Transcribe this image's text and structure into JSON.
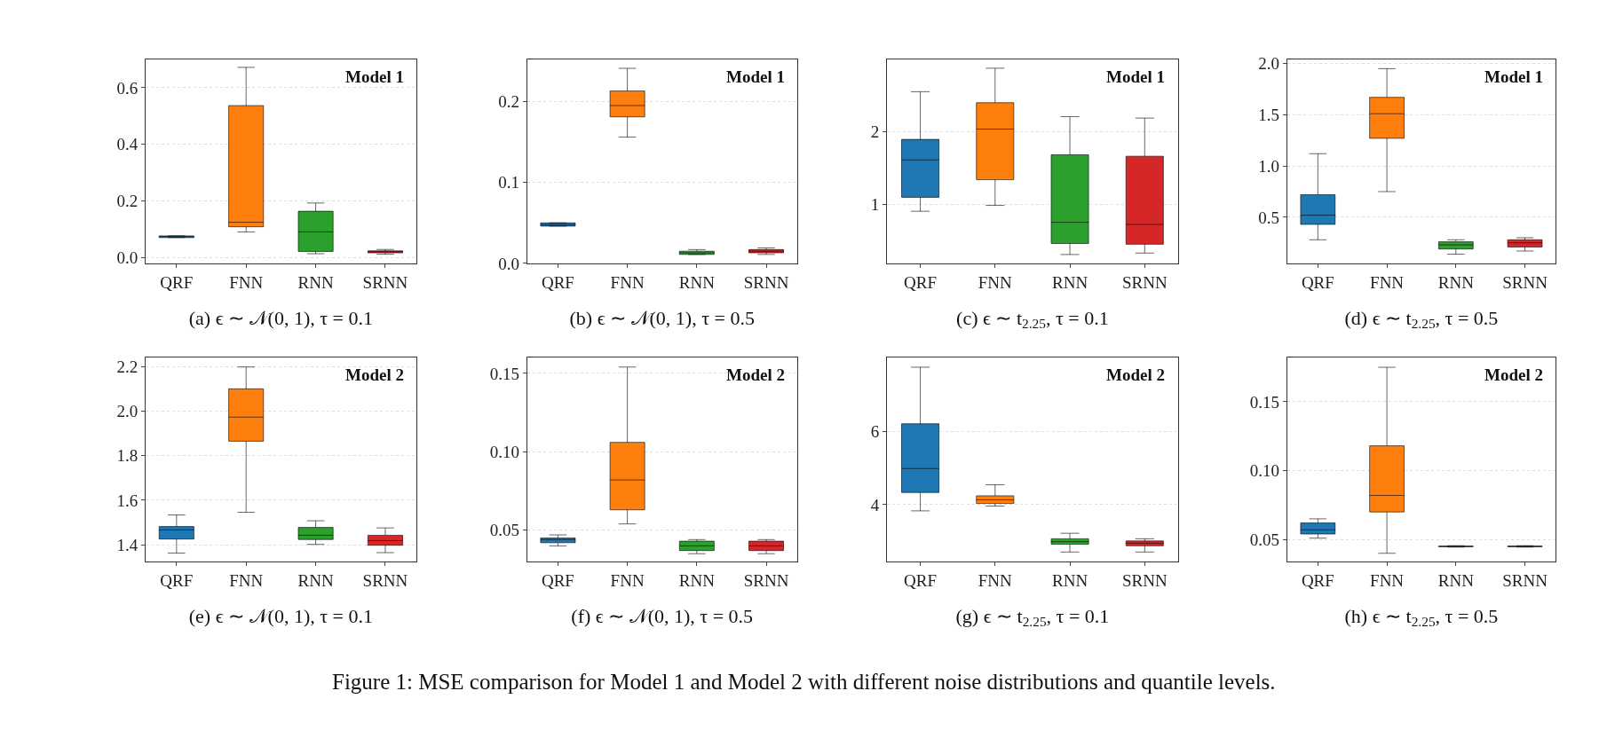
{
  "chart_data": [
    {
      "type": "box",
      "xlabel": "(a) ϵ ∼ 𝒩(0, 1), τ = 0.1",
      "annotations": [
        "Model 1"
      ],
      "categories": [
        "QRF",
        "FNN",
        "RNN",
        "SRNN"
      ],
      "colors": [
        "#1f77b4",
        "#ff7f0e",
        "#2ca02c",
        "#d62728"
      ],
      "grid": "y",
      "ylim": [
        -0.02,
        0.7
      ],
      "yticks": [
        {
          "value": 0,
          "label": "0.0"
        },
        0.2,
        0.4,
        0.6
      ],
      "boxes": [
        {
          "low": 0.071,
          "q1": 0.071,
          "median": 0.074,
          "q3": 0.077,
          "high": 0.077
        },
        {
          "low": 0.091,
          "q1": 0.109,
          "median": 0.125,
          "q3": 0.537,
          "high": 0.672
        },
        {
          "low": 0.014,
          "q1": 0.022,
          "median": 0.091,
          "q3": 0.164,
          "high": 0.193
        },
        {
          "low": 0.012,
          "q1": 0.017,
          "median": 0.022,
          "q3": 0.024,
          "high": 0.029
        }
      ]
    },
    {
      "type": "box",
      "xlabel": "(b) ϵ ∼ 𝒩(0, 1), τ = 0.5",
      "annotations": [
        "Model 1"
      ],
      "categories": [
        "QRF",
        "FNN",
        "RNN",
        "SRNN"
      ],
      "colors": [
        "#1f77b4",
        "#ff7f0e",
        "#2ca02c",
        "#d62728"
      ],
      "grid": "y",
      "ylim": [
        0,
        0.252
      ],
      "yticks": [
        {
          "value": 0,
          "label": "0.0"
        },
        0.1,
        0.2
      ],
      "boxes": [
        {
          "low": 0.046,
          "q1": 0.046,
          "median": 0.048,
          "q3": 0.05,
          "high": 0.05
        },
        {
          "low": 0.156,
          "q1": 0.181,
          "median": 0.195,
          "q3": 0.213,
          "high": 0.241
        },
        {
          "low": 0.011,
          "q1": 0.011,
          "median": 0.013,
          "q3": 0.015,
          "high": 0.017
        },
        {
          "low": 0.011,
          "q1": 0.013,
          "median": 0.015,
          "q3": 0.017,
          "high": 0.019
        }
      ]
    },
    {
      "type": "box",
      "xlabel": "(c) ϵ ∼ t$_{2.25}$, τ = 0.1",
      "annotations": [
        "Model 1"
      ],
      "categories": [
        "QRF",
        "FNN",
        "RNN",
        "SRNN"
      ],
      "colors": [
        "#1f77b4",
        "#ff7f0e",
        "#2ca02c",
        "#d62728"
      ],
      "grid": "y",
      "ylim": [
        0.2,
        2.98
      ],
      "yticks": [
        1,
        2
      ],
      "boxes": [
        {
          "low": 0.91,
          "q1": 1.1,
          "median": 1.61,
          "q3": 1.89,
          "high": 2.54
        },
        {
          "low": 0.99,
          "q1": 1.34,
          "median": 2.03,
          "q3": 2.39,
          "high": 2.86
        },
        {
          "low": 0.32,
          "q1": 0.47,
          "median": 0.76,
          "q3": 1.68,
          "high": 2.2
        },
        {
          "low": 0.34,
          "q1": 0.46,
          "median": 0.73,
          "q3": 1.66,
          "high": 2.18
        }
      ]
    },
    {
      "type": "box",
      "xlabel": "(d) ϵ ∼ t$_{2.25}$, τ = 0.5",
      "annotations": [
        "Model 1"
      ],
      "categories": [
        "QRF",
        "FNN",
        "RNN",
        "SRNN"
      ],
      "colors": [
        "#1f77b4",
        "#ff7f0e",
        "#2ca02c",
        "#d62728"
      ],
      "grid": "y",
      "ylim": [
        0.05,
        2.04
      ],
      "yticks": [
        0.5,
        {
          "value": 1,
          "label": "1.0"
        },
        1.5,
        {
          "value": 2,
          "label": "2.0"
        }
      ],
      "boxes": [
        {
          "low": 0.28,
          "q1": 0.43,
          "median": 0.52,
          "q3": 0.72,
          "high": 1.12
        },
        {
          "low": 0.75,
          "q1": 1.27,
          "median": 1.51,
          "q3": 1.67,
          "high": 1.95
        },
        {
          "low": 0.14,
          "q1": 0.19,
          "median": 0.23,
          "q3": 0.26,
          "high": 0.28
        },
        {
          "low": 0.17,
          "q1": 0.21,
          "median": 0.25,
          "q3": 0.28,
          "high": 0.3
        }
      ]
    },
    {
      "type": "box",
      "xlabel": "(e) ϵ ∼ 𝒩(0, 1), τ = 0.1",
      "annotations": [
        "Model 2"
      ],
      "categories": [
        "QRF",
        "FNN",
        "RNN",
        "SRNN"
      ],
      "colors": [
        "#1f77b4",
        "#ff7f0e",
        "#2ca02c",
        "#d62728"
      ],
      "grid": "y",
      "ylim": [
        1.325,
        2.24
      ],
      "yticks": [
        1.4,
        1.6,
        1.8,
        {
          "value": 2,
          "label": "2.0"
        },
        2.2
      ],
      "boxes": [
        {
          "low": 1.363,
          "q1": 1.426,
          "median": 1.467,
          "q3": 1.482,
          "high": 1.534
        },
        {
          "low": 1.546,
          "q1": 1.865,
          "median": 1.973,
          "q3": 2.1,
          "high": 2.198
        },
        {
          "low": 1.402,
          "q1": 1.424,
          "median": 1.443,
          "q3": 1.478,
          "high": 1.508
        },
        {
          "low": 1.365,
          "q1": 1.398,
          "median": 1.419,
          "q3": 1.443,
          "high": 1.476
        }
      ]
    },
    {
      "type": "box",
      "xlabel": "(f) ϵ ∼ 𝒩(0, 1), τ = 0.5",
      "annotations": [
        "Model 2"
      ],
      "categories": [
        "QRF",
        "FNN",
        "RNN",
        "SRNN"
      ],
      "colors": [
        "#1f77b4",
        "#ff7f0e",
        "#2ca02c",
        "#d62728"
      ],
      "grid": "y",
      "ylim": [
        0.03,
        0.16
      ],
      "yticks": [
        0.05,
        {
          "value": 0.1,
          "label": "0.10"
        },
        0.15
      ],
      "boxes": [
        {
          "low": 0.04,
          "q1": 0.042,
          "median": 0.044,
          "q3": 0.045,
          "high": 0.047
        },
        {
          "low": 0.054,
          "q1": 0.063,
          "median": 0.082,
          "q3": 0.106,
          "high": 0.154
        },
        {
          "low": 0.035,
          "q1": 0.037,
          "median": 0.04,
          "q3": 0.043,
          "high": 0.044
        },
        {
          "low": 0.035,
          "q1": 0.037,
          "median": 0.04,
          "q3": 0.043,
          "high": 0.044
        }
      ]
    },
    {
      "type": "box",
      "xlabel": "(g) ϵ ∼ t$_{2.25}$, τ = 0.1",
      "annotations": [
        "Model 2"
      ],
      "categories": [
        "QRF",
        "FNN",
        "RNN",
        "SRNN"
      ],
      "colors": [
        "#1f77b4",
        "#ff7f0e",
        "#2ca02c",
        "#d62728"
      ],
      "grid": "y",
      "ylim": [
        2.45,
        8.0
      ],
      "yticks": [
        4,
        6
      ],
      "boxes": [
        {
          "low": 3.83,
          "q1": 4.33,
          "median": 4.98,
          "q3": 6.2,
          "high": 7.74
        },
        {
          "low": 3.96,
          "q1": 4.03,
          "median": 4.13,
          "q3": 4.24,
          "high": 4.54
        },
        {
          "low": 2.71,
          "q1": 2.92,
          "median": 2.99,
          "q3": 3.07,
          "high": 3.22
        },
        {
          "low": 2.71,
          "q1": 2.88,
          "median": 2.95,
          "q3": 3.01,
          "high": 3.07
        }
      ]
    },
    {
      "type": "box",
      "xlabel": "(h) ϵ ∼ t$_{2.25}$, τ = 0.5",
      "annotations": [
        "Model 2",
        "Figure 1: MSE comparison for Model 1 and Model 2 with different noise distributions and quantile levels."
      ],
      "categories": [
        "QRF",
        "FNN",
        "RNN",
        "SRNN"
      ],
      "colors": [
        "#1f77b4",
        "#ff7f0e",
        "#2ca02c",
        "#d62728"
      ],
      "grid": "y",
      "ylim": [
        0.034,
        0.182
      ],
      "yticks": [
        0.05,
        {
          "value": 0.1,
          "label": "0.10"
        },
        0.15
      ],
      "boxes": [
        {
          "low": 0.051,
          "q1": 0.054,
          "median": 0.057,
          "q3": 0.062,
          "high": 0.065
        },
        {
          "low": 0.04,
          "q1": 0.07,
          "median": 0.082,
          "q3": 0.118,
          "high": 0.175
        },
        {
          "low": 0.0445,
          "q1": 0.0448,
          "median": 0.045,
          "q3": 0.0452,
          "high": 0.0455
        },
        {
          "low": 0.0445,
          "q1": 0.0448,
          "median": 0.045,
          "q3": 0.0452,
          "high": 0.0455
        }
      ]
    }
  ]
}
